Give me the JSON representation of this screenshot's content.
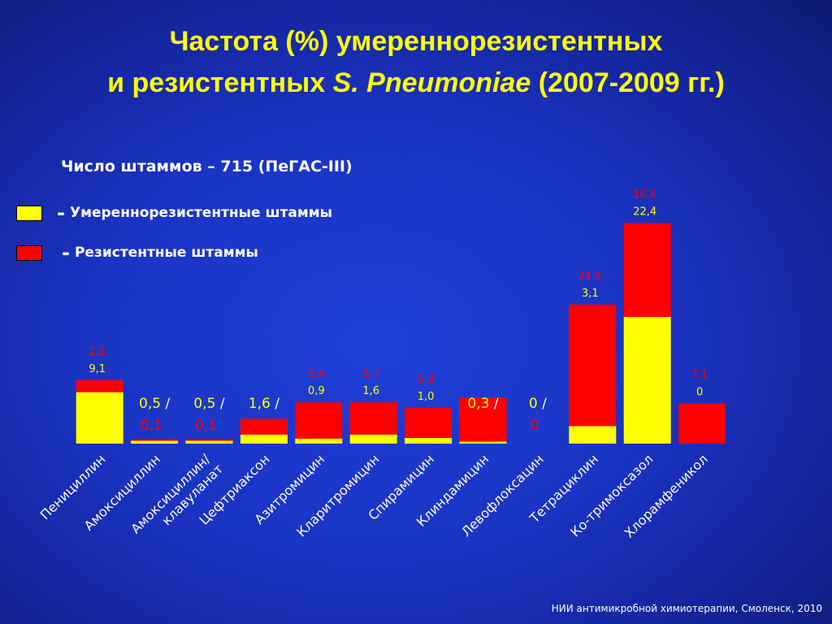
{
  "title": {
    "line1": "Частота (%) умереннорезистентных",
    "line2_prefix": "и резистентных ",
    "line2_italic": "S. Pneumoniae",
    "line2_suffix": " (2007-2009 гг.)"
  },
  "subtitle": "Число штаммов – 715 (ПеГАС-III)",
  "legend": {
    "dash": "-",
    "items": [
      {
        "label": "Умереннорезистентные штаммы",
        "color": "#ffff00"
      },
      {
        "label": "Резистентные штаммы",
        "color": "#ff0000"
      }
    ]
  },
  "footer": "НИИ антимикробной химиотерапии, Смоленск, 2010",
  "chart_data": {
    "type": "bar",
    "stacked": true,
    "ylim": [
      0,
      40
    ],
    "categories": [
      "Пенициллин",
      "Амоксициллин",
      "Амоксициллин/ клавуланат",
      "Цефтриаксон",
      "Азитромицин",
      "Кларитромицин",
      "Спирамицин",
      "Клиндамицин",
      "Левофлоксацин",
      "Тетрациклин",
      "Ко-тримоксазол",
      "Хлорамфеникол"
    ],
    "series": [
      {
        "name": "Умереннорезистентные штаммы",
        "color": "#ffff00",
        "values": [
          9.1,
          0.5,
          0.5,
          1.6,
          0.9,
          1.6,
          1.0,
          0.3,
          0,
          3.1,
          22.4,
          0
        ],
        "labels": [
          "9,1",
          "0,5",
          "0,5",
          "1,6",
          "0,9",
          "1,6",
          "1,0",
          "0,3",
          "0",
          "3,1",
          "22,4",
          "0"
        ]
      },
      {
        "name": "Резистентные штаммы",
        "color": "#ff0000",
        "values": [
          2.1,
          0.1,
          0.1,
          2.8,
          6.4,
          5.7,
          5.3,
          7.8,
          0,
          21.5,
          16.6,
          7.1
        ],
        "labels": [
          "2,1",
          "0,1",
          "0,1",
          "2,8",
          "6,4",
          "5,7",
          "5,3",
          "7,8",
          "0",
          "21,5",
          "16,6",
          "7,1"
        ]
      }
    ],
    "inline_label_categories": [
      1,
      2,
      3,
      7,
      8
    ],
    "separator": "/"
  }
}
